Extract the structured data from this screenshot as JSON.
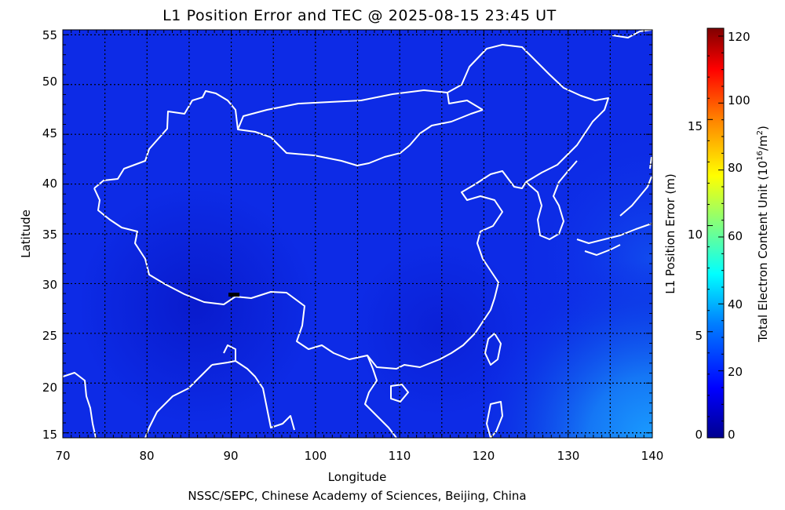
{
  "title": "L1 Position Error and TEC @ 2025-08-15 23:45 UT",
  "footer": "NSSC/SEPC, Chinese Academy of Sciences, Beijing, China",
  "xaxis": {
    "label": "Longitude",
    "range": [
      70,
      140
    ],
    "ticks": [
      "70",
      "80",
      "90",
      "100",
      "110",
      "120",
      "130",
      "140"
    ]
  },
  "yaxis": {
    "label": "Latitude",
    "range": [
      14.5,
      55.5
    ],
    "ticks": [
      "15",
      "20",
      "25",
      "30",
      "35",
      "40",
      "45",
      "50",
      "55"
    ]
  },
  "colorbar": {
    "label_left": "L1 Position Error (m)",
    "label_right_main": "Total Electron Content Unit",
    "label_right_unit": "(10",
    "label_right_exp": "16",
    "label_right_unit2": "/m",
    "label_right_exp2": "2",
    "label_right_close": ")",
    "error_ticks": [
      "0",
      "5",
      "10",
      "15"
    ],
    "tec_ticks": [
      "0",
      "20",
      "40",
      "60",
      "80",
      "100",
      "120"
    ],
    "colors": [
      "#00008f",
      "#0000ff",
      "#0080ff",
      "#00ffff",
      "#80ff80",
      "#ffff00",
      "#ff8000",
      "#ff0000",
      "#800000"
    ]
  },
  "map": {
    "background_color": "#0d2be6",
    "boundary_color": "#ffffff",
    "grid": true
  }
}
